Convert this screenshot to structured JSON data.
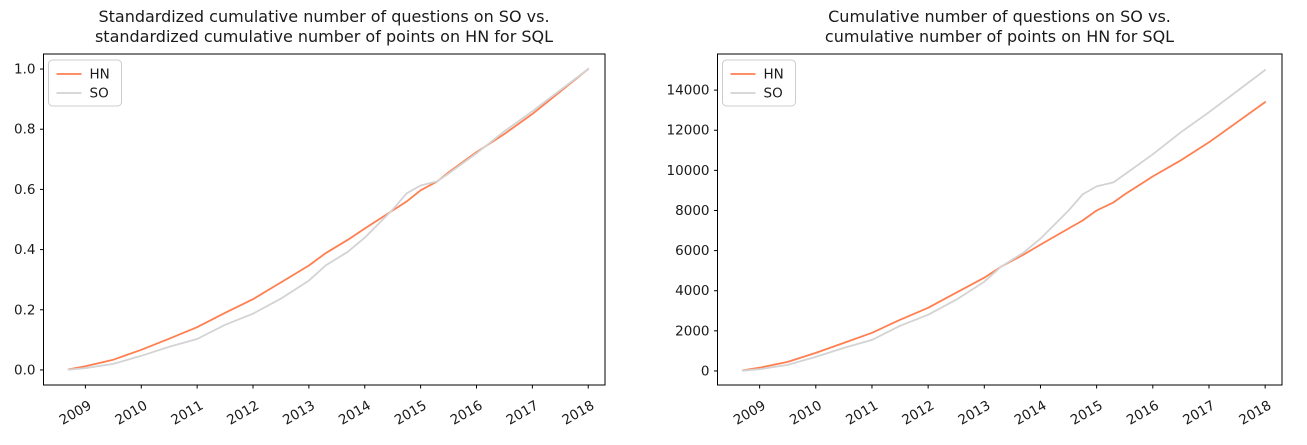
{
  "figure": {
    "background": "#ffffff"
  },
  "colors": {
    "hn": "#ff7f50",
    "so": "#d3d3d3",
    "axis": "#000000",
    "text": "#1a1a1a",
    "legend_border": "#cccccc",
    "legend_fill": "#ffffff"
  },
  "chart_data": [
    {
      "type": "line",
      "title_lines": [
        "Standardized cumulative number of questions on SO vs.",
        "standardized cumulative number of points on HN for SQL"
      ],
      "legend": [
        {
          "label": "HN",
          "color_key": "hn"
        },
        {
          "label": "SO",
          "color_key": "so"
        }
      ],
      "legend_position": "upper-left",
      "grid": false,
      "xlim": [
        2008.25,
        2018.3
      ],
      "ylim": [
        -0.05,
        1.05
      ],
      "xtick_values": [
        2009,
        2010,
        2011,
        2012,
        2013,
        2014,
        2015,
        2016,
        2017,
        2018
      ],
      "xtick_labels": [
        "2009",
        "2010",
        "2011",
        "2012",
        "2013",
        "2014",
        "2015",
        "2016",
        "2017",
        "2018"
      ],
      "ytick_values": [
        0.0,
        0.2,
        0.4,
        0.6,
        0.8,
        1.0
      ],
      "ytick_labels": [
        "0.0",
        "0.2",
        "0.4",
        "0.6",
        "0.8",
        "1.0"
      ],
      "x": [
        2008.7,
        2009,
        2009.5,
        2010,
        2010.5,
        2011,
        2011.5,
        2012,
        2012.5,
        2013,
        2013.3,
        2013.7,
        2014,
        2014.5,
        2014.75,
        2015,
        2015.3,
        2015.5,
        2016,
        2016.5,
        2017,
        2017.5,
        2018
      ],
      "series": [
        {
          "name": "HN",
          "color_key": "hn",
          "values": [
            0.002,
            0.012,
            0.034,
            0.067,
            0.104,
            0.142,
            0.19,
            0.235,
            0.291,
            0.347,
            0.388,
            0.433,
            0.47,
            0.53,
            0.56,
            0.597,
            0.627,
            0.657,
            0.724,
            0.784,
            0.851,
            0.925,
            1.0
          ]
        },
        {
          "name": "SO",
          "color_key": "so",
          "values": [
            0.001,
            0.006,
            0.02,
            0.047,
            0.077,
            0.103,
            0.15,
            0.187,
            0.237,
            0.297,
            0.347,
            0.393,
            0.44,
            0.533,
            0.587,
            0.613,
            0.627,
            0.653,
            0.72,
            0.793,
            0.86,
            0.93,
            1.0
          ]
        }
      ]
    },
    {
      "type": "line",
      "title_lines": [
        "Cumulative number of questions on SO vs.",
        "cumulative number of points on HN for SQL"
      ],
      "legend": [
        {
          "label": "HN",
          "color_key": "hn"
        },
        {
          "label": "SO",
          "color_key": "so"
        }
      ],
      "legend_position": "upper-left",
      "grid": false,
      "xlim": [
        2008.25,
        2018.3
      ],
      "ylim": [
        -700,
        15800
      ],
      "xtick_values": [
        2009,
        2010,
        2011,
        2012,
        2013,
        2014,
        2015,
        2016,
        2017,
        2018
      ],
      "xtick_labels": [
        "2009",
        "2010",
        "2011",
        "2012",
        "2013",
        "2014",
        "2015",
        "2016",
        "2017",
        "2018"
      ],
      "ytick_values": [
        0,
        2000,
        4000,
        6000,
        8000,
        10000,
        12000,
        14000
      ],
      "ytick_labels": [
        "0",
        "2000",
        "4000",
        "6000",
        "8000",
        "10000",
        "12000",
        "14000"
      ],
      "x": [
        2008.7,
        2009,
        2009.5,
        2010,
        2010.5,
        2011,
        2011.5,
        2012,
        2012.5,
        2013,
        2013.3,
        2013.7,
        2014,
        2014.5,
        2014.75,
        2015,
        2015.3,
        2015.5,
        2016,
        2016.5,
        2017,
        2017.5,
        2018
      ],
      "series": [
        {
          "name": "HN",
          "color_key": "hn",
          "values": [
            30,
            160,
            450,
            900,
            1400,
            1900,
            2550,
            3150,
            3900,
            4650,
            5200,
            5800,
            6300,
            7100,
            7500,
            8000,
            8400,
            8800,
            9700,
            10500,
            11400,
            12400,
            13400
          ]
        },
        {
          "name": "SO",
          "color_key": "so",
          "values": [
            15,
            90,
            300,
            700,
            1150,
            1550,
            2250,
            2800,
            3550,
            4450,
            5200,
            5900,
            6600,
            8000,
            8800,
            9200,
            9400,
            9800,
            10800,
            11900,
            12900,
            13950,
            15000
          ]
        }
      ]
    }
  ]
}
